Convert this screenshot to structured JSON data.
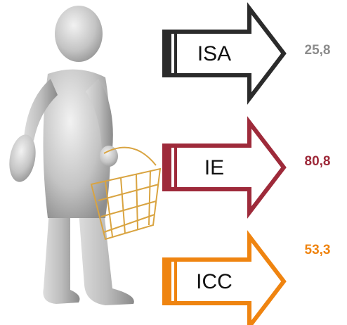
{
  "items": [
    {
      "label": "ISA",
      "value": "25,8",
      "arrow_color": "#2b2b2b",
      "value_color": "#8c8c8c"
    },
    {
      "label": "IE",
      "value": "80,8",
      "arrow_color": "#9e2a3a",
      "value_color": "#9e2a3a"
    },
    {
      "label": "ICC",
      "value": "53,3",
      "arrow_color": "#ef8410",
      "value_color": "#ef8410"
    }
  ]
}
